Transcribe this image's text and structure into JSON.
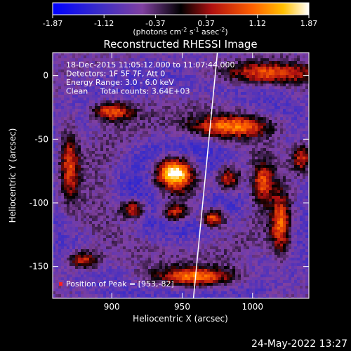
{
  "chart_data": {
    "type": "heatmap",
    "title": "Reconstructed RHESSI Image",
    "xlabel": "Heliocentric X (arcsec)",
    "ylabel": "Heliocentric Y (arcsec)",
    "xlim": [
      858,
      1040
    ],
    "ylim": [
      -175,
      18
    ],
    "xticks": [
      900,
      950,
      1000
    ],
    "yticks": [
      0,
      -50,
      -100,
      -150
    ],
    "colorbar": {
      "ticks": [
        "-1.87",
        "-1.12",
        "-0.37",
        "0.37",
        "1.12",
        "1.87"
      ],
      "range": [
        -1.87,
        1.87
      ],
      "units_parts": [
        "(photons cm",
        "-2",
        " s",
        "-1",
        " asec",
        "-2",
        ")"
      ]
    },
    "annotations": [
      "18-Dec-2015 11:05:12.000 to 11:07:44.000",
      "Detectors: 1F 5F 7F, Att 0",
      "Energy Range: 3.0 - 6.0 keV",
      "Clean     Total counts: 3.64E+03"
    ],
    "peak_label": "Position of Peak = [953,-82]",
    "peak": {
      "x": 953,
      "y": -82,
      "value": 1.87
    },
    "sources": [
      {
        "x": 944,
        "y": -76,
        "sx": 9,
        "sy": 8,
        "amp": 1.87
      },
      {
        "x": 983,
        "y": -81,
        "sx": 6,
        "sy": 7,
        "amp": 0.9
      },
      {
        "x": 1007,
        "y": -84,
        "sx": 5,
        "sy": 10,
        "amp": 0.7
      },
      {
        "x": 915,
        "y": -105,
        "sx": 6,
        "sy": 5,
        "amp": 0.85
      },
      {
        "x": 945,
        "y": -108,
        "sx": 7,
        "sy": 5,
        "amp": 0.75
      },
      {
        "x": 972,
        "y": -112,
        "sx": 6,
        "sy": 5,
        "amp": 1.2
      },
      {
        "x": 880,
        "y": -145,
        "sx": 8,
        "sy": 5,
        "amp": 0.7
      },
      {
        "x": 960,
        "y": -158,
        "sx": 20,
        "sy": 5,
        "amp": 1.0
      },
      {
        "x": 1020,
        "y": -118,
        "sx": 5,
        "sy": 18,
        "amp": 0.8
      },
      {
        "x": 900,
        "y": -28,
        "sx": 10,
        "sy": 5,
        "amp": 0.9
      },
      {
        "x": 985,
        "y": -40,
        "sx": 20,
        "sy": 6,
        "amp": 0.85
      },
      {
        "x": 1010,
        "y": 2,
        "sx": 25,
        "sy": 6,
        "amp": 0.8
      },
      {
        "x": 870,
        "y": -70,
        "sx": 5,
        "sy": 20,
        "amp": 0.75
      },
      {
        "x": 1035,
        "y": -65,
        "sx": 5,
        "sy": 8,
        "amp": 0.7
      }
    ],
    "limb_line": [
      [
        975,
        18
      ],
      [
        958,
        -175
      ]
    ],
    "date_stamp": "24-May-2022 13:27"
  }
}
